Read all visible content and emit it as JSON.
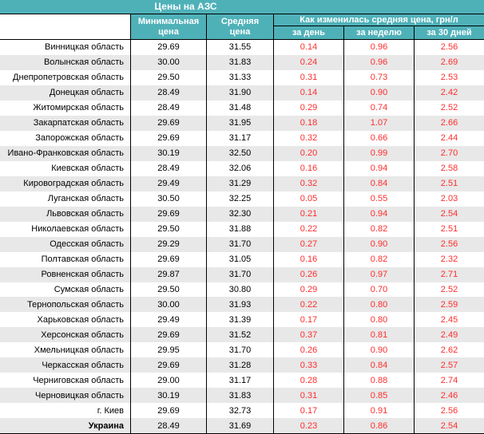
{
  "title": "Цены на АЗС",
  "colors": {
    "teal": "#4fb1b8",
    "stripe": "#e8e8e8",
    "change_red": "#ff2d2d"
  },
  "chart_data": {
    "type": "table",
    "title": "Цены на АЗС",
    "headers": {
      "region": "",
      "min": "Минимальная цена",
      "avg": "Средняя цена",
      "change_group": "Как изменилась средняя цена, грн/л",
      "day": "за день",
      "week": "за неделю",
      "month": "за 30 дней"
    },
    "rows": [
      {
        "region": "Винницкая область",
        "min": "29.69",
        "avg": "31.55",
        "day": "0.14",
        "week": "0.96",
        "month": "2.56"
      },
      {
        "region": "Волынская область",
        "min": "30.00",
        "avg": "31.83",
        "day": "0.24",
        "week": "0.96",
        "month": "2.69"
      },
      {
        "region": "Днепропетровская область",
        "min": "29.50",
        "avg": "31.33",
        "day": "0.31",
        "week": "0.73",
        "month": "2.53"
      },
      {
        "region": "Донецкая область",
        "min": "28.49",
        "avg": "31.90",
        "day": "0.14",
        "week": "0.90",
        "month": "2.42"
      },
      {
        "region": "Житомирская область",
        "min": "28.49",
        "avg": "31.48",
        "day": "0.29",
        "week": "0.74",
        "month": "2.52"
      },
      {
        "region": "Закарпатская область",
        "min": "29.69",
        "avg": "31.95",
        "day": "0.18",
        "week": "1.07",
        "month": "2.66"
      },
      {
        "region": "Запорожская область",
        "min": "29.69",
        "avg": "31.17",
        "day": "0.32",
        "week": "0.66",
        "month": "2.44"
      },
      {
        "region": "Ивано-Франковская область",
        "min": "30.19",
        "avg": "32.50",
        "day": "0.20",
        "week": "0.99",
        "month": "2.70"
      },
      {
        "region": "Киевская область",
        "min": "28.49",
        "avg": "32.06",
        "day": "0.16",
        "week": "0.94",
        "month": "2.58"
      },
      {
        "region": "Кировоградская область",
        "min": "29.49",
        "avg": "31.29",
        "day": "0.32",
        "week": "0.84",
        "month": "2.51"
      },
      {
        "region": "Луганская область",
        "min": "30.50",
        "avg": "32.25",
        "day": "0.05",
        "week": "0.55",
        "month": "2.03"
      },
      {
        "region": "Львовская область",
        "min": "29.69",
        "avg": "32.30",
        "day": "0.21",
        "week": "0.94",
        "month": "2.54"
      },
      {
        "region": "Николаевская область",
        "min": "29.50",
        "avg": "31.88",
        "day": "0.22",
        "week": "0.82",
        "month": "2.51"
      },
      {
        "region": "Одесская область",
        "min": "29.29",
        "avg": "31.70",
        "day": "0.27",
        "week": "0.90",
        "month": "2.56"
      },
      {
        "region": "Полтавская область",
        "min": "29.69",
        "avg": "31.05",
        "day": "0.16",
        "week": "0.82",
        "month": "2.32"
      },
      {
        "region": "Ровненская область",
        "min": "29.87",
        "avg": "31.70",
        "day": "0.26",
        "week": "0.97",
        "month": "2.71"
      },
      {
        "region": "Сумская область",
        "min": "29.50",
        "avg": "30.80",
        "day": "0.29",
        "week": "0.70",
        "month": "2.52"
      },
      {
        "region": "Тернопольская область",
        "min": "30.00",
        "avg": "31.93",
        "day": "0.22",
        "week": "0.80",
        "month": "2.59"
      },
      {
        "region": "Харьковская область",
        "min": "29.49",
        "avg": "31.39",
        "day": "0.17",
        "week": "0.80",
        "month": "2.45"
      },
      {
        "region": "Херсонская область",
        "min": "29.69",
        "avg": "31.52",
        "day": "0.37",
        "week": "0.81",
        "month": "2.49"
      },
      {
        "region": "Хмельницкая область",
        "min": "29.95",
        "avg": "31.70",
        "day": "0.26",
        "week": "0.90",
        "month": "2.62"
      },
      {
        "region": "Черкасская область",
        "min": "29.69",
        "avg": "31.28",
        "day": "0.33",
        "week": "0.84",
        "month": "2.57"
      },
      {
        "region": "Черниговская область",
        "min": "29.00",
        "avg": "31.17",
        "day": "0.28",
        "week": "0.88",
        "month": "2.74"
      },
      {
        "region": "Черновицкая область",
        "min": "30.19",
        "avg": "31.83",
        "day": "0.31",
        "week": "0.85",
        "month": "2.46"
      },
      {
        "region": "г. Киев",
        "min": "29.69",
        "avg": "32.73",
        "day": "0.17",
        "week": "0.91",
        "month": "2.56"
      },
      {
        "region": "Украина",
        "is_summary": true,
        "min": "28.49",
        "avg": "31.69",
        "day": "0.23",
        "week": "0.86",
        "month": "2.54"
      }
    ]
  }
}
